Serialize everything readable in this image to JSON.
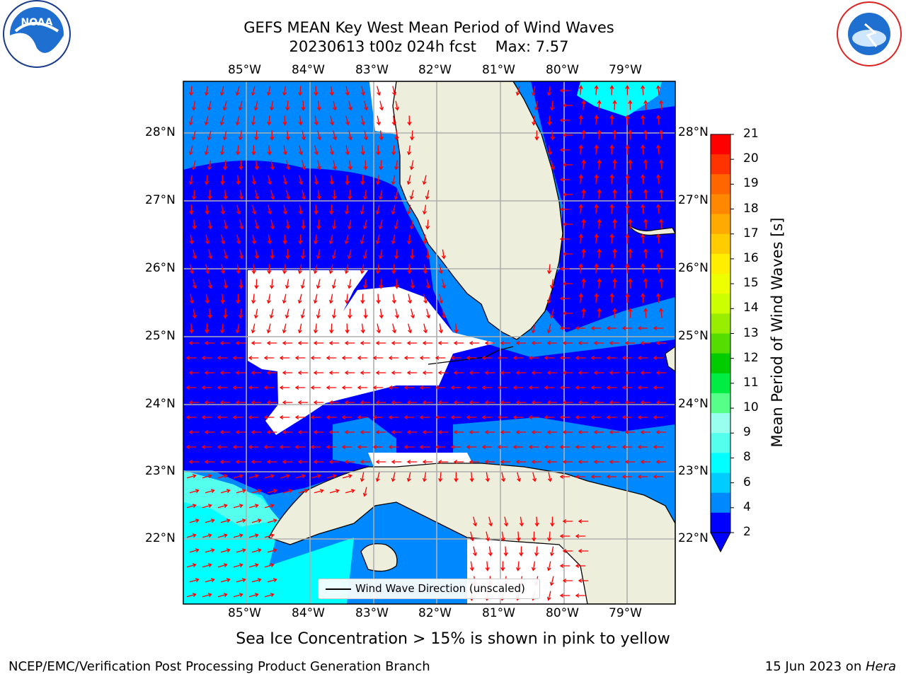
{
  "title": {
    "line1": "GEFS MEAN Key West Mean Period of Wind Waves",
    "line2": "20230613 t00z 024h fcst    Max: 7.57"
  },
  "axes": {
    "lon_ticks": [
      "85°W",
      "84°W",
      "83°W",
      "82°W",
      "81°W",
      "80°W",
      "79°W"
    ],
    "lat_ticks": [
      "28°N",
      "27°N",
      "26°N",
      "25°N",
      "24°N",
      "23°N",
      "22°N"
    ]
  },
  "colorbar": {
    "label": "Mean Period of Wind Waves [s]",
    "ticks": [
      "21",
      "20",
      "19",
      "18",
      "17",
      "16",
      "15",
      "14",
      "13",
      "12",
      "11",
      "10",
      "9",
      "8",
      "6",
      "4",
      "2"
    ],
    "colors": [
      "#ff0000",
      "#ff3300",
      "#ff6600",
      "#ff8800",
      "#ffaa00",
      "#ffcc00",
      "#ffee00",
      "#eeff00",
      "#ccff00",
      "#99ee00",
      "#55dd00",
      "#00cc00",
      "#00ee44",
      "#55ff88",
      "#99ffee",
      "#55ffee",
      "#00ffff",
      "#00ccff",
      "#0088ff",
      "#0000ff"
    ],
    "extend_color": "#0000ff"
  },
  "legend": {
    "label": "Wind Wave Direction (unscaled)"
  },
  "note": "Sea Ice Concentration > 15% is shown in pink to yellow",
  "footer": {
    "left": "NCEP/EMC/Verification Post Processing Product Generation Branch",
    "right_prefix": "15 Jun 2023 on ",
    "right_host": "Hera"
  },
  "logos": {
    "left": "NOAA",
    "right": "NATIONAL WEATHER SERVICE"
  },
  "map_colors": {
    "land": "#eeeedd",
    "sea_2_4": "#0000ff",
    "sea_4_6": "#0088ff",
    "sea_6_8": "#00ffff",
    "no_data": "#ffffff",
    "arrows": "#ff0000",
    "grid": "#b0b0b0",
    "coast": "#000000"
  }
}
